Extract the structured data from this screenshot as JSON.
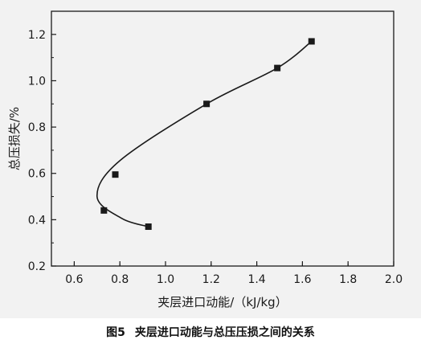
{
  "caption": {
    "number": "图5",
    "text": "夹层进口动能与总压压损之间的关系"
  },
  "colors": {
    "background": "#f2f2f2",
    "axis": "#1a1a1a",
    "marker": "#1a1a1a",
    "curve": "#1a1a1a"
  },
  "chart_data": {
    "type": "scatter",
    "xlabel": "夹层进口动能/（kJ/kg）",
    "ylabel": "总压损失/%",
    "xlim": [
      0.5,
      2.0
    ],
    "ylim": [
      0.2,
      1.3
    ],
    "xticks": [
      "0.6",
      "0.8",
      "1.0",
      "1.2",
      "1.4",
      "1.6",
      "1.8",
      "2.0"
    ],
    "xtick_values": [
      0.6,
      0.8,
      1.0,
      1.2,
      1.4,
      1.6,
      1.8,
      2.0
    ],
    "yticks": [
      "0.2",
      "0.4",
      "0.6",
      "0.8",
      "1.0",
      "1.2"
    ],
    "ytick_values": [
      0.2,
      0.4,
      0.6,
      0.8,
      1.0,
      1.2
    ],
    "grid": false,
    "marker": "square",
    "fit_curve": "smooth",
    "points": [
      {
        "x": 0.925,
        "y": 0.37
      },
      {
        "x": 0.73,
        "y": 0.44
      },
      {
        "x": 0.78,
        "y": 0.595
      },
      {
        "x": 1.18,
        "y": 0.9
      },
      {
        "x": 1.49,
        "y": 1.055
      },
      {
        "x": 1.64,
        "y": 1.17
      }
    ]
  }
}
